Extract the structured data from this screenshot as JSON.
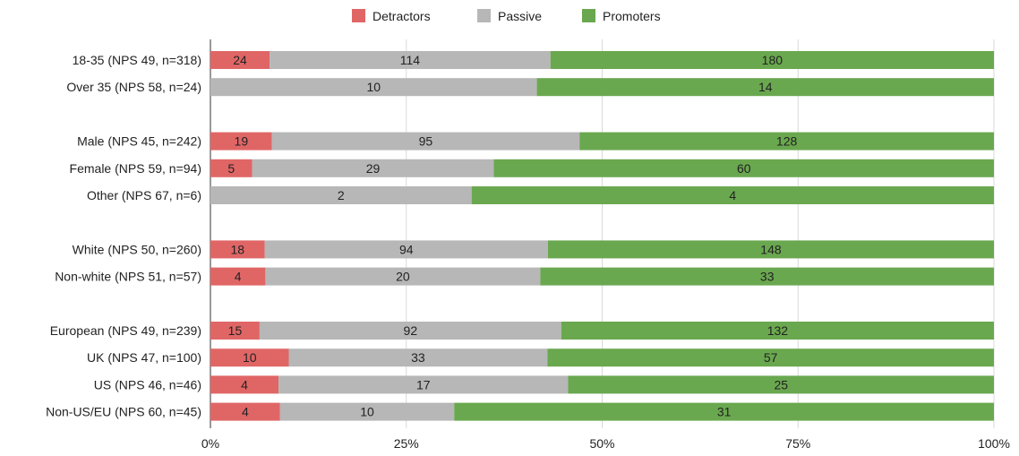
{
  "chart_data": {
    "type": "bar",
    "orientation": "horizontal",
    "stacking": "percent",
    "title": "",
    "xlabel": "",
    "ylabel": "",
    "xlim": [
      0,
      100
    ],
    "ticks": [
      "0%",
      "25%",
      "50%",
      "75%",
      "100%"
    ],
    "grid": true,
    "legend_position": "top-center",
    "series": [
      {
        "name": "Detractors",
        "color": "#e06666"
      },
      {
        "name": "Passive",
        "color": "#b7b7b7"
      },
      {
        "name": "Promoters",
        "color": "#6aa84f"
      }
    ],
    "groups": [
      {
        "rows": [
          {
            "label": "18-35 (NPS 49, n=318)",
            "values": [
              24,
              114,
              180
            ]
          },
          {
            "label": "Over 35 (NPS 58, n=24)",
            "values": [
              0,
              10,
              14
            ]
          }
        ]
      },
      {
        "rows": [
          {
            "label": "Male (NPS 45, n=242)",
            "values": [
              19,
              95,
              128
            ]
          },
          {
            "label": "Female (NPS 59, n=94)",
            "values": [
              5,
              29,
              60
            ]
          },
          {
            "label": "Other (NPS 67, n=6)",
            "values": [
              0,
              2,
              4
            ]
          }
        ]
      },
      {
        "rows": [
          {
            "label": "White (NPS 50, n=260)",
            "values": [
              18,
              94,
              148
            ]
          },
          {
            "label": "Non-white (NPS 51, n=57)",
            "values": [
              4,
              20,
              33
            ]
          }
        ]
      },
      {
        "rows": [
          {
            "label": "European (NPS 49, n=239)",
            "values": [
              15,
              92,
              132
            ]
          },
          {
            "label": "UK (NPS 47, n=100)",
            "values": [
              10,
              33,
              57
            ]
          },
          {
            "label": "US (NPS 46, n=46)",
            "values": [
              4,
              17,
              25
            ]
          },
          {
            "label": "Non-US/EU (NPS 60, n=45)",
            "values": [
              4,
              10,
              31
            ]
          }
        ]
      }
    ]
  }
}
